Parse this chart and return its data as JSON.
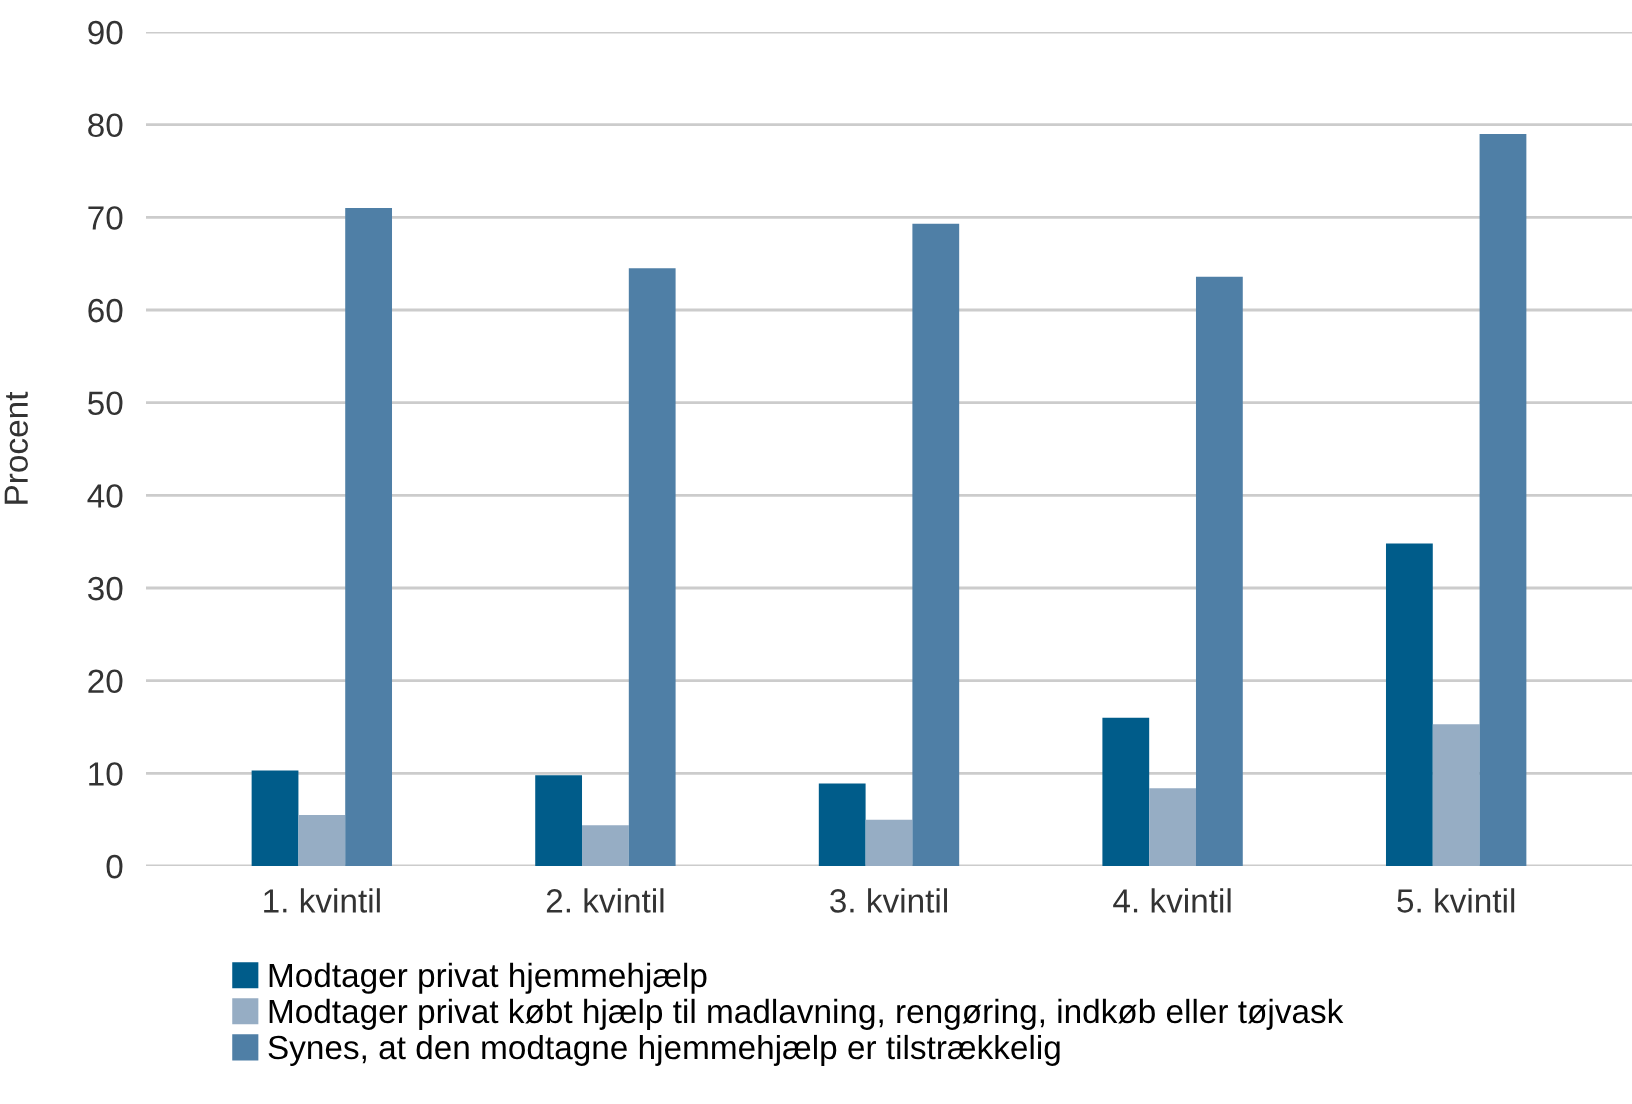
{
  "chart_data": {
    "type": "bar",
    "ylabel": "Procent",
    "categories": [
      "1. kvintil",
      "2. kvintil",
      "3. kvintil",
      "4. kvintil",
      "5. kvintil"
    ],
    "series": [
      {
        "name": "Modtager privat hjemmehjælp",
        "color": "#005c8a",
        "values": [
          10.3,
          9.8,
          8.9,
          16,
          34.8
        ]
      },
      {
        "name": "Modtager privat købt hjælp til madlavning, rengøring, indkøb eller tøjvask",
        "color": "#96adc4",
        "values": [
          5.5,
          4.4,
          5,
          8.4,
          15.3
        ]
      },
      {
        "name": "Synes, at den modtagne hjemmehjælp er tilstrækkelig",
        "color": "#4f7fa6",
        "values": [
          71,
          64.5,
          69.3,
          63.6,
          79
        ]
      }
    ],
    "ylim": [
      0,
      90
    ],
    "yticks": [
      0,
      10,
      20,
      30,
      40,
      50,
      60,
      70,
      80,
      90
    ],
    "grid": "y",
    "legend": "bottom"
  }
}
